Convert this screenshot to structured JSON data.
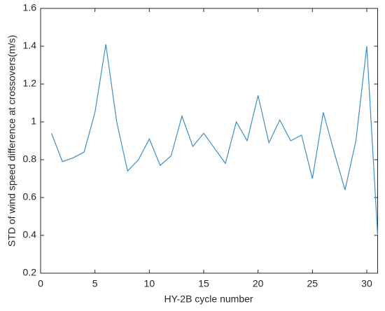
{
  "chart_data": {
    "type": "line",
    "x_label": "HY-2B cycle number",
    "y_label": "STD of wind speed difference at crossovers(m/s)",
    "x": [
      1,
      2,
      3,
      4,
      5,
      6,
      7,
      8,
      9,
      10,
      11,
      12,
      13,
      14,
      15,
      16,
      17,
      18,
      19,
      20,
      21,
      22,
      23,
      24,
      25,
      26,
      27,
      28,
      29,
      30,
      31
    ],
    "values": [
      0.94,
      0.79,
      0.81,
      0.84,
      1.05,
      1.41,
      1.0,
      0.74,
      0.8,
      0.91,
      0.77,
      0.82,
      1.03,
      0.87,
      0.94,
      0.86,
      0.78,
      1.0,
      0.9,
      1.14,
      0.89,
      1.01,
      0.9,
      0.93,
      0.7,
      1.05,
      0.84,
      0.64,
      0.9,
      1.4,
      0.4
    ],
    "color": "#3a8fc8",
    "xlim": [
      0,
      31
    ],
    "xticks": [
      0,
      5,
      10,
      15,
      20,
      25,
      30
    ],
    "ylim": [
      0.2,
      1.6
    ],
    "yticks": [
      0.2,
      0.4,
      0.6,
      0.8,
      1,
      1.2,
      1.4,
      1.6
    ]
  }
}
